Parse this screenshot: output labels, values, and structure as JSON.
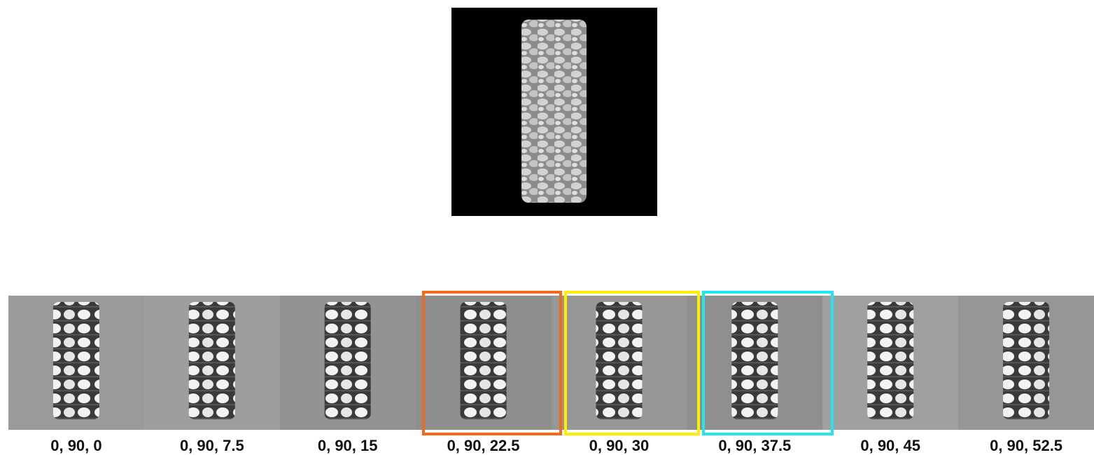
{
  "panels": [
    {
      "label": "0, 90, 0"
    },
    {
      "label": "0, 90, 7.5"
    },
    {
      "label": "0, 90, 15"
    },
    {
      "label": "0, 90, 22.5"
    },
    {
      "label": "0, 90, 30"
    },
    {
      "label": "0, 90, 37.5"
    },
    {
      "label": "0, 90, 45"
    },
    {
      "label": "0, 90, 52.5"
    }
  ]
}
